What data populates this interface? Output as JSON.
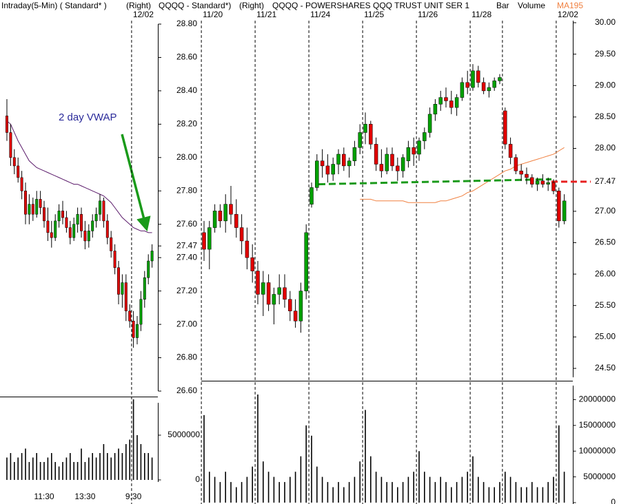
{
  "chart_data": [
    {
      "type": "candlestick",
      "title": "Intraday(5-Min) ( Standard* )",
      "axis_note": "(Right)",
      "symbol": "QQQQ - Standard*)",
      "categories": [
        null,
        null,
        null,
        null,
        null,
        null,
        null,
        null,
        null,
        null,
        "11:30",
        null,
        null,
        null,
        null,
        null,
        null,
        null,
        null,
        null,
        null,
        "13:30",
        null,
        null,
        null,
        null,
        null,
        null,
        null,
        null,
        null,
        null,
        null,
        null,
        "9:30",
        null,
        null,
        null,
        null,
        null
      ],
      "date_labels": [
        null,
        null,
        null,
        null,
        null,
        null,
        null,
        null,
        null,
        null,
        null,
        null,
        null,
        null,
        null,
        null,
        null,
        null,
        null,
        null,
        null,
        null,
        null,
        null,
        null,
        null,
        null,
        null,
        null,
        null,
        null,
        null,
        null,
        null,
        "12/02",
        null,
        null,
        null,
        null,
        null
      ],
      "up_color": "#00a000",
      "down_color": "#e00000",
      "series": [
        {
          "open": [
            28.25,
            28.15,
            28.0,
            27.95,
            27.88,
            27.8,
            27.66,
            27.72,
            27.66,
            27.75,
            27.7,
            27.62,
            27.55,
            27.52,
            27.62,
            27.68,
            27.64,
            27.58,
            27.52,
            27.6,
            27.66,
            27.56,
            27.5,
            27.56,
            27.62,
            27.66,
            27.74,
            27.62,
            27.52,
            27.44,
            27.34,
            27.18,
            27.25,
            27.08,
            27.02,
            26.92,
            27.0,
            27.15,
            27.28,
            27.38
          ],
          "high": [
            28.35,
            28.2,
            28.05,
            28.0,
            27.92,
            27.85,
            27.78,
            27.76,
            27.8,
            27.8,
            27.74,
            27.7,
            27.62,
            27.66,
            27.72,
            27.74,
            27.68,
            27.62,
            27.64,
            27.7,
            27.7,
            27.62,
            27.6,
            27.66,
            27.7,
            27.78,
            27.76,
            27.66,
            27.56,
            27.48,
            27.38,
            27.3,
            27.3,
            27.12,
            27.08,
            27.05,
            27.2,
            27.32,
            27.42,
            27.48
          ],
          "low": [
            28.1,
            27.95,
            27.9,
            27.85,
            27.75,
            27.6,
            27.6,
            27.62,
            27.64,
            27.66,
            27.58,
            27.5,
            27.46,
            27.5,
            27.58,
            27.6,
            27.55,
            27.48,
            27.5,
            27.55,
            27.52,
            27.45,
            27.46,
            27.52,
            27.58,
            27.62,
            27.58,
            27.48,
            27.4,
            27.3,
            27.12,
            27.1,
            27.02,
            26.98,
            26.86,
            26.88,
            26.96,
            27.1,
            27.24,
            27.34
          ],
          "close": [
            28.15,
            28.0,
            27.95,
            27.88,
            27.8,
            27.66,
            27.72,
            27.66,
            27.75,
            27.7,
            27.62,
            27.55,
            27.52,
            27.62,
            27.68,
            27.64,
            27.58,
            27.52,
            27.6,
            27.66,
            27.56,
            27.5,
            27.56,
            27.62,
            27.66,
            27.74,
            27.62,
            27.52,
            27.44,
            27.34,
            27.18,
            27.25,
            27.08,
            27.02,
            26.92,
            27.0,
            27.15,
            27.28,
            27.38,
            27.44
          ]
        },
        {
          "name": "2 day VWAP",
          "color": "#5a1a6a",
          "values": [
            28.22,
            28.2,
            28.15,
            28.1,
            28.06,
            28.02,
            27.98,
            27.96,
            27.94,
            27.93,
            27.92,
            27.91,
            27.9,
            27.89,
            27.88,
            27.87,
            27.86,
            27.85,
            27.84,
            27.84,
            27.83,
            27.82,
            27.81,
            27.8,
            27.79,
            27.78,
            27.77,
            27.75,
            27.73,
            27.7,
            27.67,
            27.64,
            27.62,
            27.6,
            27.58,
            27.57,
            27.56,
            27.56,
            27.55,
            27.55
          ]
        }
      ],
      "volume": [
        2500000,
        3000000,
        2000000,
        2500000,
        3000000,
        3500000,
        2000000,
        2500000,
        3000000,
        2000000,
        2000000,
        2500000,
        3000000,
        2000000,
        1500000,
        2000000,
        2500000,
        3000000,
        2000000,
        2000000,
        3500000,
        2000000,
        2500000,
        3000000,
        2500000,
        3000000,
        4000000,
        3000000,
        2500000,
        3000000,
        3500000,
        3000000,
        4000000,
        4500000,
        9000000,
        5000000,
        4000000,
        3000000,
        3000000,
        2500000
      ],
      "ylim": [
        26.6,
        28.8
      ],
      "yticks": [
        {
          "value": 28.8,
          "label": "28.80"
        },
        {
          "value": 28.6,
          "label": "28.60"
        },
        {
          "value": 28.4,
          "label": "28.40"
        },
        {
          "value": 28.2,
          "label": "28.20"
        },
        {
          "value": 28.0,
          "label": "28.00"
        },
        {
          "value": 27.8,
          "label": "27.80"
        },
        {
          "value": 27.6,
          "label": "27.60"
        },
        27.47,
        {
          "value": 27.4,
          "label": "27.40"
        },
        {
          "value": 27.2,
          "label": "27.20"
        },
        {
          "value": 27.0,
          "label": "27.00"
        },
        {
          "value": 26.8,
          "label": "26.80"
        },
        {
          "value": 26.6,
          "label": "26.60"
        }
      ],
      "volume_ylim": [
        0,
        9000000
      ],
      "volume_yticks": [
        0,
        5000000
      ]
    },
    {
      "type": "candlestick",
      "title": "QQQQ - POWERSHARES QQQ TRUST UNIT SER 1",
      "axis_note": "(Right)",
      "date_labels": [
        "11/20",
        null,
        null,
        null,
        null,
        null,
        null,
        null,
        null,
        null,
        "11/21",
        null,
        null,
        null,
        null,
        null,
        null,
        null,
        null,
        null,
        "11/24",
        null,
        null,
        null,
        null,
        null,
        null,
        null,
        null,
        null,
        "11/25",
        null,
        null,
        null,
        null,
        null,
        null,
        null,
        null,
        null,
        "11/26",
        null,
        null,
        null,
        null,
        null,
        null,
        null,
        null,
        null,
        "11/28",
        null,
        null,
        null,
        null,
        null,
        null,
        null,
        null,
        null,
        null,
        null,
        null,
        null,
        null,
        null,
        "12/02",
        null
      ],
      "up_color": "#00a000",
      "down_color": "#e00000",
      "series": [
        {
          "name": "Bar",
          "open": [
            27.55,
            27.45,
            27.58,
            27.68,
            27.62,
            27.72,
            27.66,
            27.58,
            27.5,
            27.4,
            27.32,
            27.18,
            27.25,
            27.12,
            27.18,
            27.22,
            27.15,
            27.08,
            27.02,
            27.2,
            27.72,
            27.82,
            27.98,
            27.95,
            27.9,
            27.96,
            28.02,
            27.95,
            27.98,
            28.06,
            28.15,
            28.2,
            28.08,
            27.96,
            27.92,
            28.02,
            27.95,
            27.92,
            27.98,
            28.06,
            28.02,
            28.1,
            28.15,
            28.26,
            28.32,
            28.36,
            28.34,
            28.3,
            28.36,
            28.45,
            28.42,
            28.52,
            28.45,
            28.4,
            28.42,
            28.46,
            28.28,
            28.08,
            28.0,
            27.92,
            27.9,
            27.88,
            27.84,
            27.86,
            27.84,
            27.85,
            27.8,
            27.62
          ],
          "high": [
            27.62,
            27.62,
            27.72,
            27.72,
            27.78,
            27.83,
            27.75,
            27.66,
            27.58,
            27.48,
            27.38,
            27.32,
            27.3,
            27.22,
            27.3,
            27.3,
            27.2,
            27.15,
            27.25,
            27.6,
            27.85,
            28.02,
            28.05,
            28.02,
            28.0,
            28.05,
            28.06,
            28.0,
            28.1,
            28.2,
            28.27,
            28.22,
            28.12,
            28.05,
            28.06,
            28.06,
            28.0,
            28.02,
            28.1,
            28.12,
            28.12,
            28.18,
            28.3,
            28.35,
            28.4,
            28.42,
            28.4,
            28.38,
            28.48,
            28.52,
            28.56,
            28.55,
            28.48,
            28.45,
            28.48,
            28.5,
            28.3,
            28.12,
            28.02,
            27.96,
            27.94,
            27.9,
            27.88,
            27.9,
            27.88,
            27.87,
            27.82,
            27.78
          ],
          "low": [
            27.38,
            27.33,
            27.55,
            27.58,
            27.55,
            27.6,
            27.52,
            27.42,
            27.33,
            27.25,
            27.12,
            27.05,
            27.08,
            27.0,
            27.12,
            27.1,
            27.02,
            26.98,
            26.95,
            27.15,
            27.7,
            27.8,
            27.88,
            27.85,
            27.86,
            27.9,
            27.92,
            27.88,
            27.95,
            28.02,
            28.08,
            28.05,
            27.92,
            27.88,
            27.9,
            27.92,
            27.86,
            27.88,
            27.94,
            27.95,
            27.98,
            28.05,
            28.12,
            28.22,
            28.28,
            28.3,
            28.26,
            28.25,
            28.34,
            28.38,
            28.4,
            28.42,
            28.38,
            28.36,
            28.4,
            28.44,
            28.05,
            27.96,
            27.9,
            27.86,
            27.84,
            27.82,
            27.8,
            27.82,
            27.8,
            27.78,
            27.58,
            27.6
          ],
          "close": [
            27.45,
            27.58,
            27.68,
            27.62,
            27.72,
            27.66,
            27.58,
            27.5,
            27.4,
            27.32,
            27.18,
            27.25,
            27.12,
            27.18,
            27.22,
            27.15,
            27.08,
            27.02,
            27.2,
            27.55,
            27.82,
            27.98,
            27.95,
            27.9,
            27.96,
            28.02,
            27.95,
            27.98,
            28.06,
            28.15,
            28.2,
            28.08,
            27.96,
            27.92,
            28.02,
            27.95,
            27.92,
            28.0,
            28.06,
            28.02,
            28.1,
            28.15,
            28.26,
            28.32,
            28.36,
            28.34,
            28.3,
            28.36,
            28.45,
            28.42,
            28.52,
            28.45,
            28.4,
            28.42,
            28.46,
            28.48,
            28.08,
            28.0,
            27.92,
            27.9,
            27.88,
            27.84,
            27.86,
            27.84,
            27.85,
            27.8,
            27.62,
            27.74
          ]
        },
        {
          "name": "Volume",
          "values": [
            17000000,
            6000000,
            5000000,
            4000000,
            6000000,
            4000000,
            3000000,
            4000000,
            5000000,
            7000000,
            21000000,
            8000000,
            6000000,
            5000000,
            4000000,
            4000000,
            5000000,
            6000000,
            9000000,
            15000000,
            13000000,
            7000000,
            5000000,
            4000000,
            3000000,
            4000000,
            3000000,
            4000000,
            5000000,
            8000000,
            18000000,
            9000000,
            6000000,
            5000000,
            4000000,
            4000000,
            3000000,
            4000000,
            5000000,
            6000000,
            10000000,
            6000000,
            5000000,
            4000000,
            5000000,
            4000000,
            3000000,
            4000000,
            5000000,
            6000000,
            9000000,
            5000000,
            4000000,
            3000000,
            3000000,
            4000000,
            6000000,
            5000000,
            4000000,
            3000000,
            3000000,
            4000000,
            3000000,
            3000000,
            4000000,
            5000000,
            15000000,
            6000000
          ]
        },
        {
          "name": "MA195",
          "color": "#f08040",
          "values": [
            null,
            null,
            null,
            null,
            null,
            null,
            null,
            null,
            null,
            null,
            null,
            null,
            null,
            null,
            null,
            null,
            null,
            null,
            null,
            null,
            null,
            null,
            null,
            null,
            null,
            null,
            null,
            null,
            null,
            27.75,
            27.75,
            27.75,
            27.74,
            27.74,
            27.74,
            27.74,
            27.74,
            27.74,
            27.73,
            27.73,
            27.73,
            27.73,
            27.73,
            27.73,
            27.74,
            27.74,
            27.75,
            27.76,
            27.77,
            27.79,
            27.8,
            27.82,
            27.84,
            27.86,
            27.88,
            27.9,
            27.92,
            27.93,
            27.95,
            27.96,
            27.97,
            27.98,
            27.99,
            28.0,
            28.01,
            28.02,
            28.04,
            28.06
          ]
        }
      ],
      "trendline": {
        "start": 27.84,
        "end": 27.87,
        "color": "#1a9a1a"
      },
      "level": {
        "value": 27.47,
        "color": "#e82020"
      },
      "ylim": [
        26.6,
        28.8
      ],
      "y2lim": [
        24.5,
        30.0
      ],
      "y2ticks": [
        {
          "value": 30.0,
          "label": "30.00"
        },
        {
          "value": 29.5,
          "label": "29.50"
        },
        {
          "value": 29.0,
          "label": "29.00"
        },
        {
          "value": 28.5,
          "label": "28.50"
        },
        {
          "value": 28.0,
          "label": "28.00"
        },
        27.47,
        {
          "value": 27.0,
          "label": "27.00"
        },
        {
          "value": 26.5,
          "label": "26.50"
        },
        {
          "value": 26.0,
          "label": "26.00"
        },
        {
          "value": 25.5,
          "label": "25.50"
        },
        {
          "value": 25.0,
          "label": "25.00"
        },
        {
          "value": 24.5,
          "label": "24.50"
        }
      ],
      "volume_ylim": [
        0,
        23000000
      ],
      "volume_yticks": [
        0,
        5000000,
        10000000,
        15000000,
        20000000
      ]
    }
  ]
}
